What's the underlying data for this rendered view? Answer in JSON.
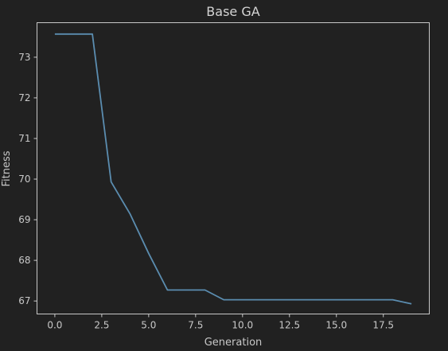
{
  "chart_data": {
    "type": "line",
    "title": "Base GA",
    "xlabel": "Generation",
    "ylabel": "Fitness",
    "xlim": [
      -0.95,
      19.95
    ],
    "ylim": [
      66.68,
      73.85
    ],
    "xticks": [
      0.0,
      2.5,
      5.0,
      7.5,
      10.0,
      12.5,
      15.0,
      17.5
    ],
    "xtick_labels": [
      "0.0",
      "2.5",
      "5.0",
      "7.5",
      "10.0",
      "12.5",
      "15.0",
      "17.5"
    ],
    "yticks": [
      67,
      68,
      69,
      70,
      71,
      72,
      73
    ],
    "ytick_labels": [
      "67",
      "68",
      "69",
      "70",
      "71",
      "72",
      "73"
    ],
    "grid": false,
    "series": [
      {
        "color": "#5b8db0",
        "x": [
          0,
          1,
          2,
          3,
          4,
          5,
          6,
          7,
          8,
          9,
          10,
          11,
          12,
          13,
          14,
          15,
          16,
          17,
          18,
          19
        ],
        "values": [
          73.57,
          73.57,
          73.57,
          69.93,
          69.15,
          68.17,
          67.27,
          67.27,
          67.27,
          67.03,
          67.03,
          67.03,
          67.03,
          67.03,
          67.03,
          67.03,
          67.03,
          67.03,
          67.03,
          66.93
        ]
      }
    ]
  },
  "colors": {
    "background": "#212121",
    "axes_frame": "#c8c8c8",
    "text": "#c8c8c8"
  }
}
